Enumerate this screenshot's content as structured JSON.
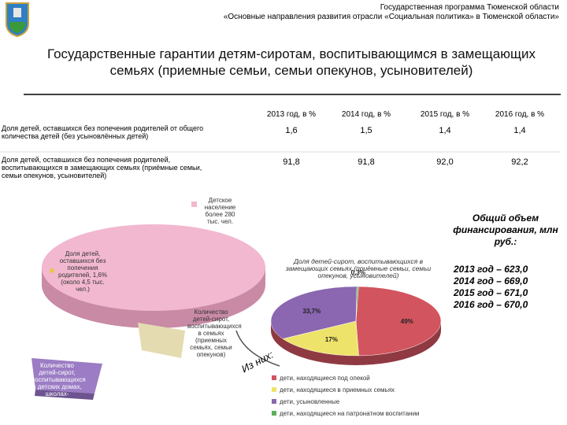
{
  "header": {
    "program": "Государственная программа Тюменской области",
    "subprogram": "«Основные направления развития отрасли «Социальная политика» в Тюменской области»"
  },
  "title": "Государственные гарантии детям-сиротам, воспитывающимся в замещающих семьях (приемные семьи, семьи опекунов, усыновителей)",
  "table": {
    "columns": [
      "2013 год, в %",
      "2014 год, в %",
      "2015 год, в %",
      "2016 год, в %"
    ],
    "rows": [
      {
        "label": "Доля детей, оставшихся без попечения родителей от общего количества детей (без усыновлённых детей)",
        "values": [
          "1,6",
          "1,5",
          "1,4",
          "1,4"
        ]
      },
      {
        "label": "Доля детей, оставшихся без попечения родителей, воспитывающихся в замещающих семьях (приёмные семьи, семьи опекунов, усыновителей)",
        "values": [
          "91,8",
          "91,8",
          "92,0",
          "92,2"
        ]
      }
    ]
  },
  "financing": {
    "title": "Общий объем финансирования, млн руб.:",
    "items": [
      "2013 год – 623,0",
      "2014 год – 669,0",
      "2015 год – 671,0",
      "2016 год – 670,0"
    ]
  },
  "population_chart": {
    "labels": [
      "Детское население более 280 тыс. чел.",
      "Доля детей, оставшихся без попечения родителей, 1,6% (около 4,5 тыс. чел.)",
      "Количество детей-сирот, воспитывающихся в семьях (приемных семьях, семьи опекунов)",
      "Количество детей-сирот, воспитывающихся в детских домах, школах-интернатах, домах..."
    ]
  },
  "from_them": "Из них:",
  "family_chart": {
    "title": "Доля детей-сирот, воспитывающихся в замещающих семьях (приёмные семьи, семьи опекунов, усыновителей)",
    "slices": [
      {
        "value": 49,
        "label": "49%",
        "color": "#d2545e",
        "legend": "дети, находящиеся под опекой"
      },
      {
        "value": 17,
        "label": "17%",
        "color": "#eee36a",
        "legend": "дети, находящиеся в приемных семьях"
      },
      {
        "value": 33.7,
        "label": "33,7%",
        "color": "#8a67b0",
        "legend": "дети, усыновленные"
      },
      {
        "value": 0.3,
        "label": "0,3%",
        "color": "#5fae5a",
        "legend": "дети, находящиеся на патронатном воспитании"
      }
    ]
  }
}
